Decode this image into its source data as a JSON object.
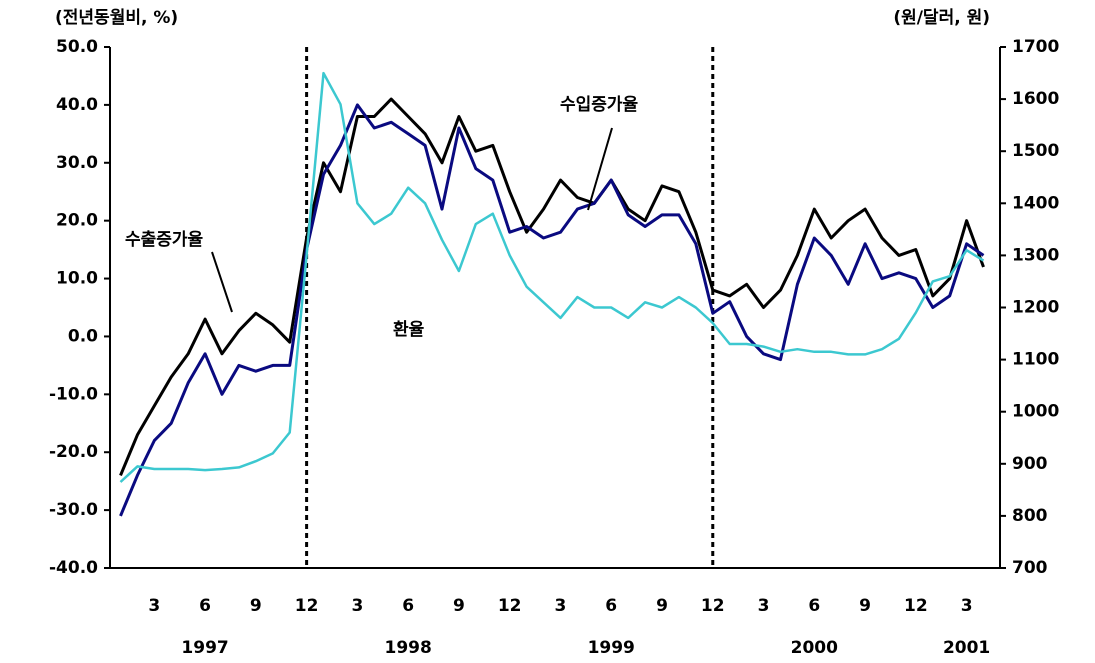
{
  "chart_data": {
    "type": "line",
    "y_label": "(전년동월비, %)",
    "y2_label": "(원/달러, 원)",
    "categories": [
      "1997-01",
      "1997-02",
      "1997-03",
      "1997-04",
      "1997-05",
      "1997-06",
      "1997-07",
      "1997-08",
      "1997-09",
      "1997-10",
      "1997-11",
      "1997-12",
      "1998-01",
      "1998-02",
      "1998-03",
      "1998-04",
      "1998-05",
      "1998-06",
      "1998-07",
      "1998-08",
      "1998-09",
      "1998-10",
      "1998-11",
      "1998-12",
      "1999-01",
      "1999-02",
      "1999-03",
      "1999-04",
      "1999-05",
      "1999-06",
      "1999-07",
      "1999-08",
      "1999-09",
      "1999-10",
      "1999-11",
      "1999-12",
      "2000-01",
      "2000-02",
      "2000-03",
      "2000-04",
      "2000-05",
      "2000-06",
      "2000-07",
      "2000-08",
      "2000-09",
      "2000-10",
      "2000-11",
      "2000-12",
      "2001-01",
      "2001-02",
      "2001-03",
      "2001-04"
    ],
    "xticks": [
      {
        "value": "1997-03",
        "label": "3"
      },
      {
        "value": "1997-06",
        "label": "6"
      },
      {
        "value": "1997-09",
        "label": "9"
      },
      {
        "value": "1997-12",
        "label": "12"
      },
      {
        "value": "1998-03",
        "label": "3"
      },
      {
        "value": "1998-06",
        "label": "6"
      },
      {
        "value": "1998-09",
        "label": "9"
      },
      {
        "value": "1998-12",
        "label": "12"
      },
      {
        "value": "1999-03",
        "label": "3"
      },
      {
        "value": "1999-06",
        "label": "6"
      },
      {
        "value": "1999-09",
        "label": "9"
      },
      {
        "value": "1999-12",
        "label": "12"
      },
      {
        "value": "2000-03",
        "label": "3"
      },
      {
        "value": "2000-06",
        "label": "6"
      },
      {
        "value": "2000-09",
        "label": "9"
      },
      {
        "value": "2000-12",
        "label": "12"
      },
      {
        "value": "2001-03",
        "label": "3"
      }
    ],
    "year_labels": [
      {
        "value": "1997-06",
        "label": "1997"
      },
      {
        "value": "1998-06",
        "label": "1998"
      },
      {
        "value": "1999-06",
        "label": "1999"
      },
      {
        "value": "2000-06",
        "label": "2000"
      },
      {
        "value": "2001-03",
        "label": "2001"
      }
    ],
    "vlines": [
      "1997-12",
      "1999-12"
    ],
    "series": [
      {
        "name": "수출증가율",
        "color": "#000000",
        "values": [
          -24,
          -17,
          -12,
          -7,
          -3,
          3,
          -3,
          1,
          4,
          2,
          -1,
          17,
          30,
          25,
          38,
          38,
          41,
          38,
          35,
          30,
          38,
          32,
          33,
          25,
          18,
          22,
          27,
          24,
          23,
          27,
          22,
          20,
          26,
          25,
          18,
          8,
          7,
          9,
          5,
          8,
          14,
          22,
          17,
          20,
          22,
          17,
          14,
          15,
          7,
          10,
          20,
          12
        ]
      },
      {
        "name": "수입증가율",
        "color": "#0a0a80",
        "values": [
          -31,
          -24,
          -18,
          -15,
          -8,
          -3,
          -10,
          -5,
          -6,
          -5,
          -5,
          15,
          28,
          33,
          40,
          36,
          37,
          35,
          33,
          22,
          36,
          29,
          27,
          18,
          19,
          17,
          18,
          22,
          23,
          27,
          21,
          19,
          21,
          21,
          16,
          4,
          6,
          0,
          -3,
          -4,
          9,
          17,
          14,
          9,
          16,
          10,
          11,
          10,
          5,
          7,
          16,
          14
        ]
      },
      {
        "name": "환율",
        "color": "#3cc8d0",
        "axis": "y2",
        "values": [
          865,
          895,
          890,
          890,
          890,
          888,
          890,
          893,
          905,
          920,
          960,
          1300,
          1650,
          1590,
          1400,
          1360,
          1380,
          1430,
          1400,
          1330,
          1270,
          1360,
          1380,
          1300,
          1240,
          1210,
          1180,
          1220,
          1200,
          1200,
          1180,
          1210,
          1200,
          1220,
          1200,
          1170,
          1130,
          1130,
          1125,
          1115,
          1120,
          1115,
          1115,
          1110,
          1110,
          1120,
          1140,
          1190,
          1250,
          1260,
          1310,
          1290
        ]
      }
    ],
    "ylim": [
      -40,
      50
    ],
    "yticks": [
      {
        "value": -40,
        "label": "-40.0"
      },
      {
        "value": -30,
        "label": "-30.0"
      },
      {
        "value": -20,
        "label": "-20.0"
      },
      {
        "value": -10,
        "label": "-10.0"
      },
      {
        "value": 0,
        "label": "0.0"
      },
      {
        "value": 10,
        "label": "10.0"
      },
      {
        "value": 20,
        "label": "20.0"
      },
      {
        "value": 30,
        "label": "30.0"
      },
      {
        "value": 40,
        "label": "40.0"
      },
      {
        "value": 50,
        "label": "50.0"
      }
    ],
    "y2lim": [
      700,
      1700
    ],
    "y2ticks": [
      700,
      800,
      900,
      1000,
      1100,
      1200,
      1300,
      1400,
      1500,
      1600,
      1700
    ]
  }
}
